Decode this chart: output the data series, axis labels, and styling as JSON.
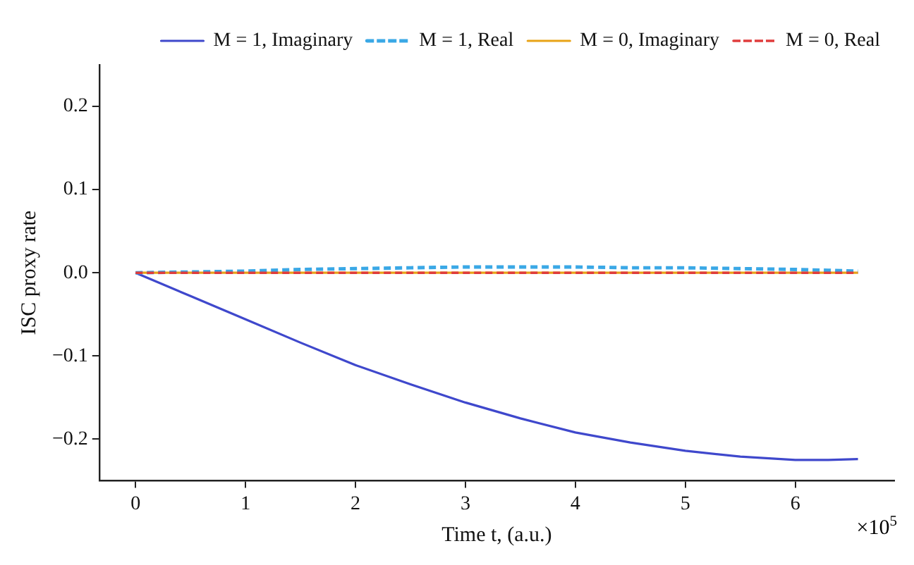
{
  "chart_data": {
    "type": "line",
    "xlabel": "Time t, (a.u.)",
    "ylabel": "ISC proxy rate",
    "annotations": [
      "×10$^{5}$"
    ],
    "xlim": [
      -0.33,
      6.9
    ],
    "xticks": [
      0,
      1,
      2,
      3,
      4,
      5,
      6
    ],
    "ylim": [
      -0.25,
      0.25
    ],
    "yticks": [
      -0.2,
      -0.1,
      {
        "value": 0,
        "label": "0.0"
      },
      0.1,
      0.2
    ],
    "x": [
      0,
      0.5,
      1,
      1.5,
      2,
      2.5,
      3,
      3.5,
      4,
      4.5,
      5,
      5.5,
      6,
      6.3,
      6.57
    ],
    "grid": false,
    "legend": "top right",
    "marker": "none",
    "series": [
      {
        "name": "M = 1, Imaginary",
        "color": "#3f48cc",
        "line_style": "solid",
        "values": [
          0,
          -0.028,
          -0.056,
          -0.084,
          -0.111,
          -0.134,
          -0.156,
          -0.175,
          -0.192,
          -0.204,
          -0.214,
          -0.221,
          -0.225,
          -0.225,
          -0.224
        ]
      },
      {
        "name": "M = 1, Real",
        "color": "#3aa8e6",
        "line_style": "dashed",
        "values": [
          0,
          0.001,
          0.002,
          0.004,
          0.005,
          0.006,
          0.007,
          0.007,
          0.007,
          0.006,
          0.006,
          0.005,
          0.004,
          0.003,
          0.002
        ]
      },
      {
        "name": "M = 0, Imaginary",
        "color": "#e8a317",
        "line_style": "solid",
        "values": [
          0,
          0,
          0,
          0,
          0,
          0,
          0,
          0,
          0,
          0,
          0,
          0,
          0,
          0,
          0
        ]
      },
      {
        "name": "M = 0, Real",
        "color": "#e03c3c",
        "line_style": "dashed",
        "values": [
          0,
          0,
          0,
          0,
          0,
          0,
          0,
          0,
          0,
          0,
          0,
          0,
          0,
          0,
          0
        ]
      }
    ]
  }
}
